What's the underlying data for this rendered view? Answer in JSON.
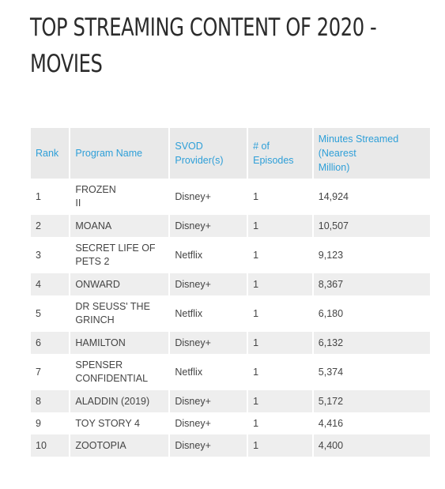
{
  "title": {
    "line1": "TOP STREAMING CONTENT OF 2020 -",
    "line2": "MOVIES"
  },
  "table": {
    "headers": {
      "rank": "Rank",
      "program": "Program Name",
      "provider_l1": "SVOD",
      "provider_l2": "Provider(s)",
      "episodes_l1": "# of",
      "episodes_l2": "Episodes",
      "minutes_l1": "Minutes Streamed",
      "minutes_l2": "(Nearest",
      "minutes_l3": "Million)"
    },
    "rows": [
      {
        "rank": "1",
        "program_l1": "FROZEN",
        "program_l2": "II",
        "provider": "Disney+",
        "episodes": "1",
        "minutes": "14,924"
      },
      {
        "rank": "2",
        "program_l1": "MOANA",
        "program_l2": "",
        "provider": "Disney+",
        "episodes": "1",
        "minutes": "10,507"
      },
      {
        "rank": "3",
        "program_l1": "SECRET LIFE OF",
        "program_l2": "PETS 2",
        "provider": "Netflix",
        "episodes": "1",
        "minutes": "9,123"
      },
      {
        "rank": "4",
        "program_l1": "ONWARD",
        "program_l2": "",
        "provider": "Disney+",
        "episodes": "1",
        "minutes": "8,367"
      },
      {
        "rank": "5",
        "program_l1": "DR SEUSS' THE",
        "program_l2": "GRINCH",
        "provider": "Netflix",
        "episodes": "1",
        "minutes": "6,180"
      },
      {
        "rank": "6",
        "program_l1": "HAMILTON",
        "program_l2": "",
        "provider": "Disney+",
        "episodes": "1",
        "minutes": "6,132"
      },
      {
        "rank": "7",
        "program_l1": "SPENSER",
        "program_l2": "CONFIDENTIAL",
        "provider": "Netflix",
        "episodes": "1",
        "minutes": "5,374"
      },
      {
        "rank": "8",
        "program_l1": "ALADDIN (2019)",
        "program_l2": "",
        "provider": "Disney+",
        "episodes": "1",
        "minutes": "5,172"
      },
      {
        "rank": "9",
        "program_l1": "TOY STORY 4",
        "program_l2": "",
        "provider": "Disney+",
        "episodes": "1",
        "minutes": "4,416"
      },
      {
        "rank": "10",
        "program_l1": "ZOOTOPIA",
        "program_l2": "",
        "provider": "Disney+",
        "episodes": "1",
        "minutes": "4,400"
      }
    ]
  },
  "colors": {
    "header_text": "#2e9fd8",
    "header_bg": "#e9e9e9",
    "stripe_bg": "#eeeeee",
    "title_text": "#2b2b2b"
  }
}
